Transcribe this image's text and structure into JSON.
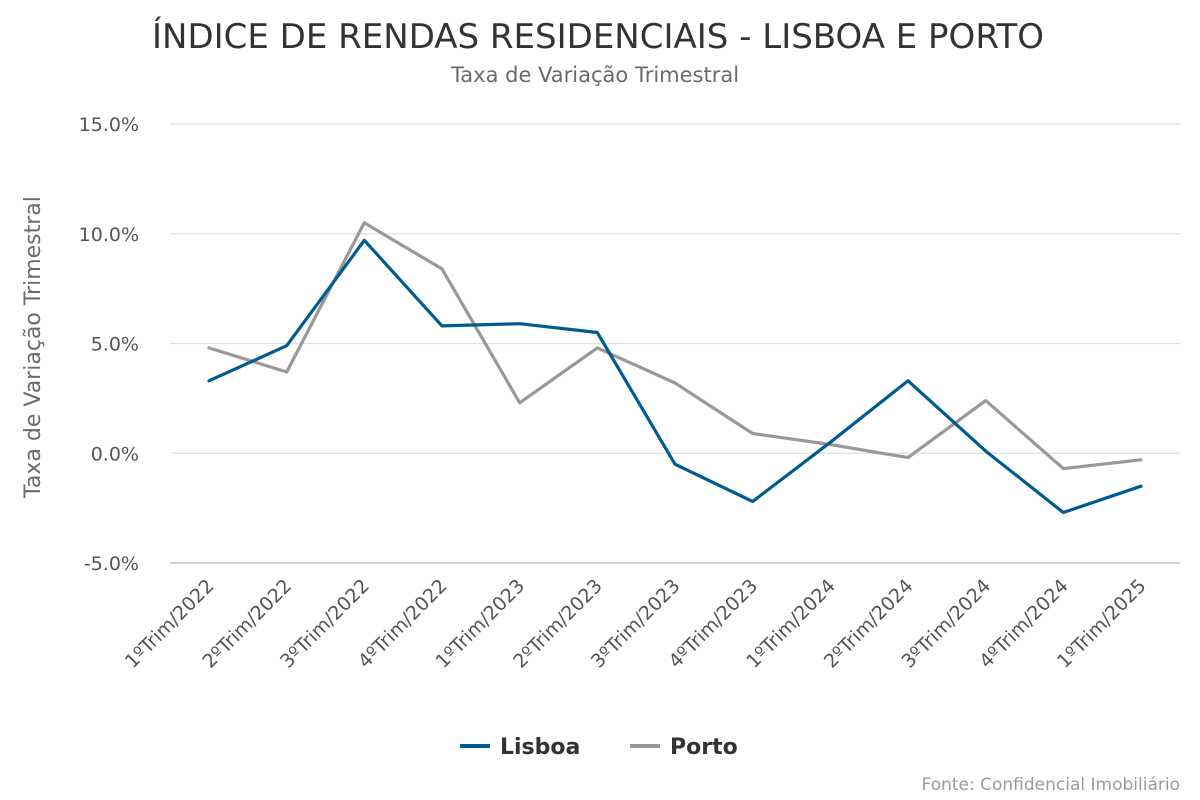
{
  "chart_data": {
    "type": "line",
    "title": "ÍNDICE DE RENDAS RESIDENCIAIS - LISBOA E PORTO",
    "subtitle": "Taxa de Variação Trimestral",
    "xlabel": "",
    "ylabel": "Taxa de Variação Trimestral",
    "ylim": [
      -5,
      15
    ],
    "yticks": [
      -5,
      0,
      5,
      10,
      15
    ],
    "ytick_labels": [
      "-5.0%",
      "0.0%",
      "5.0%",
      "10.0%",
      "15.0%"
    ],
    "categories": [
      "1ºTrim/2022",
      "2ºTrim/2022",
      "3ºTrim/2022",
      "4ºTrim/2022",
      "1ºTrim/2023",
      "2ºTrim/2023",
      "3ºTrim/2023",
      "4ºTrim/2023",
      "1ºTrim/2024",
      "2ºTrim/2024",
      "3ºTrim/2024",
      "4ºTrim/2024",
      "1ºTrim/2025"
    ],
    "series": [
      {
        "name": "Lisboa",
        "color": "#005b8f",
        "values": [
          3.3,
          4.9,
          9.7,
          5.8,
          5.9,
          5.5,
          -0.5,
          -2.2,
          0.5,
          3.3,
          0.1,
          -2.7,
          -1.5
        ]
      },
      {
        "name": "Porto",
        "color": "#999999",
        "values": [
          4.8,
          3.7,
          10.5,
          8.4,
          2.3,
          4.8,
          3.2,
          0.9,
          0.4,
          -0.2,
          2.4,
          -0.7,
          -0.3
        ]
      }
    ],
    "grid": true,
    "legend_position": "bottom-center",
    "source": "Fonte: Confidencial Imobiliário"
  }
}
